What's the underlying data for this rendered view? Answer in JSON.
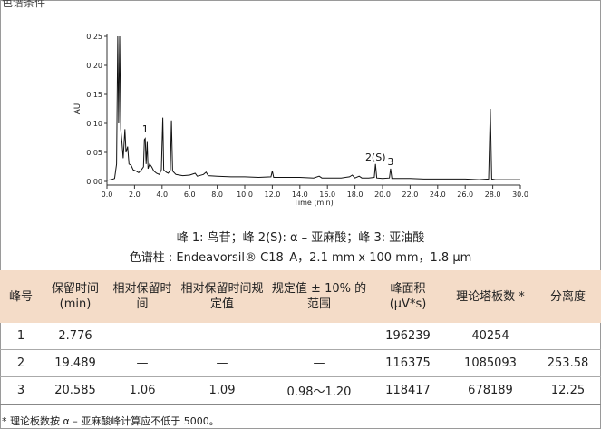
{
  "corner_text": "色谱条件",
  "chart_data": {
    "type": "line",
    "xlabel": "Time (min)",
    "ylabel": "AU",
    "xlim": [
      0,
      30
    ],
    "ylim": [
      0,
      0.25
    ],
    "xticks": [
      0.0,
      2.0,
      4.0,
      6.0,
      8.0,
      10.0,
      12.0,
      14.0,
      16.0,
      18.0,
      20.0,
      22.0,
      24.0,
      26.0,
      28.0,
      30.0
    ],
    "xtick_labels": [
      "0.0",
      "2.0",
      "4.0",
      "6.0",
      "8.0",
      "10.0",
      "12.0",
      "14.0",
      "16.0",
      "18.0",
      "20.0",
      "22.0",
      "24.0",
      "26.0",
      "28.0",
      "30.0"
    ],
    "yticks": [
      0.0,
      0.05,
      0.1,
      0.15,
      0.2,
      0.25
    ],
    "ytick_labels": [
      "0.00",
      "0.05",
      "0.10",
      "0.15",
      "0.20",
      "0.25"
    ],
    "grid": false,
    "annotations": [
      {
        "text": "1",
        "x": 2.776,
        "y": 0.078
      },
      {
        "text": "2(S)",
        "x": 19.489,
        "y": 0.03
      },
      {
        "text": "3",
        "x": 20.585,
        "y": 0.022
      }
    ],
    "points": [
      [
        0,
        0.002
      ],
      [
        0.3,
        0.003
      ],
      [
        0.55,
        0.005
      ],
      [
        0.7,
        0.03
      ],
      [
        0.78,
        0.25
      ],
      [
        0.85,
        0.1
      ],
      [
        0.92,
        0.25
      ],
      [
        1.0,
        0.09
      ],
      [
        1.08,
        0.07
      ],
      [
        1.18,
        0.04
      ],
      [
        1.3,
        0.09
      ],
      [
        1.38,
        0.05
      ],
      [
        1.5,
        0.06
      ],
      [
        1.6,
        0.03
      ],
      [
        1.75,
        0.028
      ],
      [
        1.9,
        0.02
      ],
      [
        2.1,
        0.018
      ],
      [
        2.3,
        0.015
      ],
      [
        2.5,
        0.02
      ],
      [
        2.65,
        0.025
      ],
      [
        2.72,
        0.072
      ],
      [
        2.776,
        0.074
      ],
      [
        2.84,
        0.03
      ],
      [
        2.92,
        0.068
      ],
      [
        2.98,
        0.022
      ],
      [
        3.1,
        0.03
      ],
      [
        3.25,
        0.025
      ],
      [
        3.4,
        0.018
      ],
      [
        3.6,
        0.014
      ],
      [
        3.8,
        0.012
      ],
      [
        3.95,
        0.02
      ],
      [
        4.05,
        0.11
      ],
      [
        4.12,
        0.02
      ],
      [
        4.3,
        0.016
      ],
      [
        4.45,
        0.014
      ],
      [
        4.6,
        0.02
      ],
      [
        4.68,
        0.105
      ],
      [
        4.76,
        0.018
      ],
      [
        5.0,
        0.012
      ],
      [
        5.5,
        0.01
      ],
      [
        6.0,
        0.011
      ],
      [
        6.4,
        0.014
      ],
      [
        6.55,
        0.009
      ],
      [
        7.0,
        0.012
      ],
      [
        7.2,
        0.016
      ],
      [
        7.35,
        0.01
      ],
      [
        8.0,
        0.009
      ],
      [
        9.0,
        0.008
      ],
      [
        10.0,
        0.008
      ],
      [
        11.0,
        0.007
      ],
      [
        11.9,
        0.008
      ],
      [
        12.0,
        0.018
      ],
      [
        12.1,
        0.007
      ],
      [
        13.0,
        0.007
      ],
      [
        14.0,
        0.007
      ],
      [
        15.0,
        0.006
      ],
      [
        15.4,
        0.009
      ],
      [
        15.6,
        0.006
      ],
      [
        16.0,
        0.006
      ],
      [
        17.0,
        0.006
      ],
      [
        17.6,
        0.008
      ],
      [
        17.8,
        0.011
      ],
      [
        18.0,
        0.006
      ],
      [
        18.3,
        0.009
      ],
      [
        18.5,
        0.006
      ],
      [
        19.0,
        0.006
      ],
      [
        19.4,
        0.007
      ],
      [
        19.489,
        0.03
      ],
      [
        19.58,
        0.006
      ],
      [
        20.0,
        0.005
      ],
      [
        20.5,
        0.006
      ],
      [
        20.585,
        0.022
      ],
      [
        20.68,
        0.005
      ],
      [
        21.5,
        0.005
      ],
      [
        22.0,
        0.005
      ],
      [
        23.0,
        0.004
      ],
      [
        24.0,
        0.004
      ],
      [
        25.0,
        0.004
      ],
      [
        26.0,
        0.004
      ],
      [
        27.0,
        0.003
      ],
      [
        27.7,
        0.004
      ],
      [
        27.82,
        0.125
      ],
      [
        27.92,
        0.004
      ],
      [
        28.2,
        0.003
      ],
      [
        29.0,
        0.003
      ],
      [
        30.0,
        0.003
      ]
    ]
  },
  "caption": {
    "line1": "峰 1: 鸟苷；峰 2(S): α – 亚麻酸；峰 3: 亚油酸",
    "line2": "色谱柱 : Endeavorsil® C18–A，2.1 mm x 100 mm，1.8 μm"
  },
  "table": {
    "headers": [
      "峰号",
      "保留时间 (min)",
      "相对保留时间",
      "相对保留时间规定值",
      "规定值 ± 10% 的范围",
      "峰面积 (μV*s)",
      "理论塔板数 *",
      "分离度"
    ],
    "rows": [
      [
        "1",
        "2.776",
        "—",
        "—",
        "—",
        "196239",
        "40254",
        "—"
      ],
      [
        "2",
        "19.489",
        "—",
        "—",
        "—",
        "116375",
        "1085093",
        "253.58"
      ],
      [
        "3",
        "20.585",
        "1.06",
        "1.09",
        "0.98～1.20",
        "118417",
        "678189",
        "12.25"
      ]
    ]
  },
  "footnote": "* 理论板数按 α – 亚麻酸峰计算应不低于 5000。",
  "colors": {
    "header_bg": "#f4dcc8",
    "trace": "#111111"
  }
}
